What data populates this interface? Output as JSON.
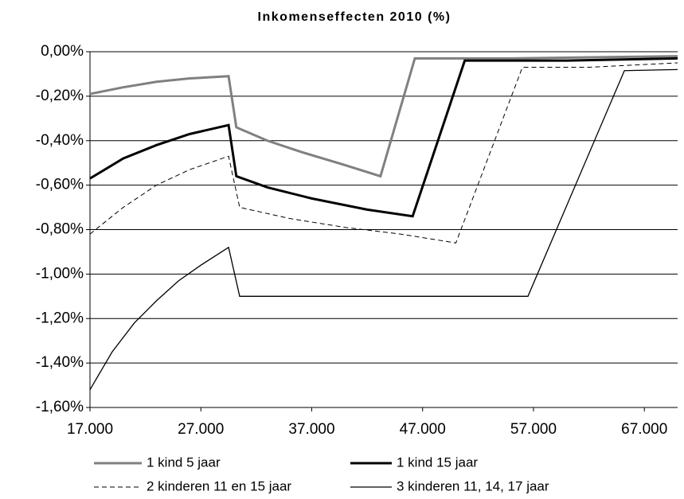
{
  "chart_data": {
    "type": "line",
    "title": "Inkomenseffecten 2010 (%)",
    "xlim": [
      17000,
      70000
    ],
    "xticks": [
      {
        "value": 17000,
        "label": "17.000"
      },
      {
        "value": 27000,
        "label": "27.000"
      },
      {
        "value": 37000,
        "label": "37.000"
      },
      {
        "value": 47000,
        "label": "47.000"
      },
      {
        "value": 57000,
        "label": "57.000"
      },
      {
        "value": 67000,
        "label": "67.000"
      }
    ],
    "ylim": [
      -1.6,
      0
    ],
    "yticks": [
      {
        "value": 0,
        "label": "0,00%"
      },
      {
        "value": -0.2,
        "label": "-0,20%"
      },
      {
        "value": -0.4,
        "label": "-0,40%"
      },
      {
        "value": -0.6,
        "label": "-0,60%"
      },
      {
        "value": -0.8,
        "label": "-0,80%"
      },
      {
        "value": -1.0,
        "label": "-1,00%"
      },
      {
        "value": -1.2,
        "label": "-1,20%"
      },
      {
        "value": -1.4,
        "label": "-1,40%"
      },
      {
        "value": -1.6,
        "label": "-1,60%"
      }
    ],
    "grid": true,
    "series": [
      {
        "name": "1 kind 5 jaar",
        "color": "#808080",
        "width": 3,
        "dash": false,
        "x": [
          17000,
          20000,
          23000,
          26000,
          29500,
          30200,
          33000,
          36000,
          40000,
          43200,
          46300,
          55000,
          70000
        ],
        "values": [
          -0.19,
          -0.16,
          -0.135,
          -0.12,
          -0.11,
          -0.34,
          -0.4,
          -0.45,
          -0.51,
          -0.56,
          -0.03,
          -0.03,
          -0.02
        ]
      },
      {
        "name": "1 kind 15 jaar",
        "color": "#000000",
        "width": 3,
        "dash": false,
        "x": [
          17000,
          20000,
          23000,
          26000,
          29500,
          30200,
          33000,
          37000,
          42000,
          46100,
          50800,
          60000,
          70000
        ],
        "values": [
          -0.57,
          -0.48,
          -0.42,
          -0.37,
          -0.33,
          -0.56,
          -0.61,
          -0.66,
          -0.71,
          -0.74,
          -0.04,
          -0.04,
          -0.03
        ]
      },
      {
        "name": "2 kinderen 11 en 15 jaar",
        "color": "#000000",
        "width": 1,
        "dash": true,
        "x": [
          17000,
          20000,
          23000,
          26000,
          29500,
          30500,
          35000,
          40000,
          45000,
          50000,
          56000,
          62000,
          70000
        ],
        "values": [
          -0.82,
          -0.7,
          -0.6,
          -0.53,
          -0.47,
          -0.7,
          -0.75,
          -0.79,
          -0.82,
          -0.86,
          -0.07,
          -0.07,
          -0.05
        ]
      },
      {
        "name": "3 kinderen 11, 14, 17 jaar",
        "color": "#000000",
        "width": 1.3,
        "dash": false,
        "x": [
          17000,
          19000,
          21000,
          23000,
          25000,
          27000,
          29500,
          30500,
          56500,
          65200,
          70000
        ],
        "values": [
          -1.52,
          -1.35,
          -1.22,
          -1.12,
          -1.03,
          -0.96,
          -0.88,
          -1.1,
          -1.1,
          -0.085,
          -0.08
        ]
      }
    ]
  }
}
